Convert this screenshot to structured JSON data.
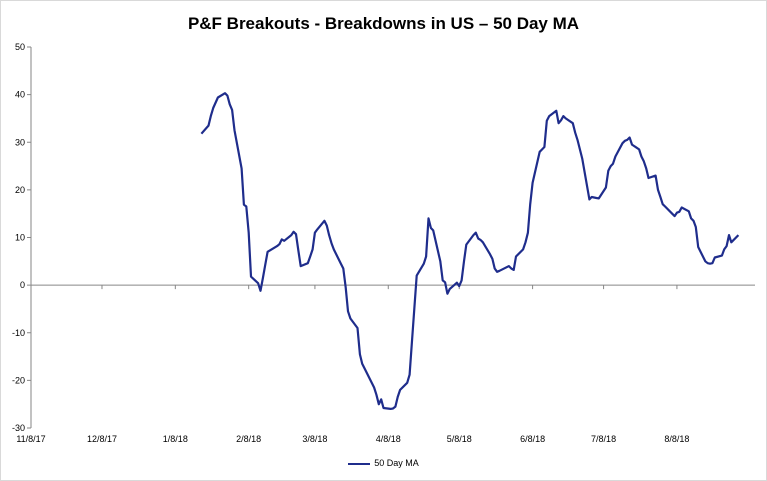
{
  "chart_data": {
    "type": "line",
    "title": "P&F Breakouts - Breakdowns in US – 50 Day MA",
    "xlabel": "",
    "ylabel": "",
    "ylim": [
      -30,
      50
    ],
    "yticks": [
      -30,
      -20,
      -10,
      0,
      10,
      20,
      30,
      40,
      50
    ],
    "xlim": [
      "2017-11-08",
      "2018-09-10"
    ],
    "xtick_labels": [
      "11/8/17",
      "12/8/17",
      "1/8/18",
      "2/8/18",
      "3/8/18",
      "4/8/18",
      "5/8/18",
      "6/8/18",
      "7/8/18",
      "8/8/18"
    ],
    "xtick_dates": [
      "2017-11-08",
      "2017-12-08",
      "2018-01-08",
      "2018-02-08",
      "2018-03-08",
      "2018-04-08",
      "2018-05-08",
      "2018-06-08",
      "2018-07-08",
      "2018-08-08"
    ],
    "grid": false,
    "legend_position": "bottom",
    "series": [
      {
        "name": "50 Day MA",
        "color": "#1f2d8c",
        "points": [
          [
            "2018-01-19",
            31.8
          ],
          [
            "2018-01-22",
            33.5
          ],
          [
            "2018-01-23",
            35.5
          ],
          [
            "2018-01-24",
            37.2
          ],
          [
            "2018-01-26",
            39.4
          ],
          [
            "2018-01-29",
            40.3
          ],
          [
            "2018-01-30",
            39.8
          ],
          [
            "2018-01-31",
            38.0
          ],
          [
            "2018-02-01",
            36.8
          ],
          [
            "2018-02-02",
            32.5
          ],
          [
            "2018-02-05",
            24.5
          ],
          [
            "2018-02-06",
            16.9
          ],
          [
            "2018-02-07",
            16.5
          ],
          [
            "2018-02-08",
            11.0
          ],
          [
            "2018-02-09",
            1.8
          ],
          [
            "2018-02-12",
            0.4
          ],
          [
            "2018-02-13",
            -1.2
          ],
          [
            "2018-02-14",
            1.5
          ],
          [
            "2018-02-15",
            4.2
          ],
          [
            "2018-02-16",
            7.0
          ],
          [
            "2018-02-20",
            8.2
          ],
          [
            "2018-02-21",
            8.6
          ],
          [
            "2018-02-22",
            9.6
          ],
          [
            "2018-02-23",
            9.3
          ],
          [
            "2018-02-26",
            10.5
          ],
          [
            "2018-02-27",
            11.2
          ],
          [
            "2018-02-28",
            10.7
          ],
          [
            "2018-03-01",
            7.2
          ],
          [
            "2018-03-02",
            4.0
          ],
          [
            "2018-03-05",
            4.6
          ],
          [
            "2018-03-06",
            6.0
          ],
          [
            "2018-03-07",
            7.5
          ],
          [
            "2018-03-08",
            11.0
          ],
          [
            "2018-03-09",
            11.7
          ],
          [
            "2018-03-12",
            13.5
          ],
          [
            "2018-03-13",
            12.5
          ],
          [
            "2018-03-14",
            10.5
          ],
          [
            "2018-03-15",
            8.8
          ],
          [
            "2018-03-16",
            7.5
          ],
          [
            "2018-03-19",
            4.5
          ],
          [
            "2018-03-20",
            3.5
          ],
          [
            "2018-03-21",
            -0.5
          ],
          [
            "2018-03-22",
            -5.5
          ],
          [
            "2018-03-23",
            -7.0
          ],
          [
            "2018-03-26",
            -9.0
          ],
          [
            "2018-03-27",
            -14.5
          ],
          [
            "2018-03-28",
            -16.5
          ],
          [
            "2018-03-29",
            -17.5
          ],
          [
            "2018-04-02",
            -21.5
          ],
          [
            "2018-04-03",
            -23.0
          ],
          [
            "2018-04-04",
            -25.0
          ],
          [
            "2018-04-05",
            -24.0
          ],
          [
            "2018-04-06",
            -25.8
          ],
          [
            "2018-04-09",
            -26.0
          ],
          [
            "2018-04-10",
            -25.9
          ],
          [
            "2018-04-11",
            -25.5
          ],
          [
            "2018-04-12",
            -23.5
          ],
          [
            "2018-04-13",
            -22.0
          ],
          [
            "2018-04-16",
            -20.5
          ],
          [
            "2018-04-17",
            -18.8
          ],
          [
            "2018-04-18",
            -12.0
          ],
          [
            "2018-04-19",
            -5.0
          ],
          [
            "2018-04-20",
            2.0
          ],
          [
            "2018-04-23",
            4.5
          ],
          [
            "2018-04-24",
            6.0
          ],
          [
            "2018-04-25",
            14.0
          ],
          [
            "2018-04-26",
            12.0
          ],
          [
            "2018-04-27",
            11.5
          ],
          [
            "2018-04-30",
            5.0
          ],
          [
            "2018-05-01",
            1.0
          ],
          [
            "2018-05-02",
            0.6
          ],
          [
            "2018-05-03",
            -1.8
          ],
          [
            "2018-05-04",
            -0.8
          ],
          [
            "2018-05-07",
            0.5
          ],
          [
            "2018-05-08",
            -0.2
          ],
          [
            "2018-05-09",
            1.0
          ],
          [
            "2018-05-10",
            5.0
          ],
          [
            "2018-05-11",
            8.5
          ],
          [
            "2018-05-14",
            10.5
          ],
          [
            "2018-05-15",
            11.0
          ],
          [
            "2018-05-16",
            9.8
          ],
          [
            "2018-05-17",
            9.5
          ],
          [
            "2018-05-18",
            9.0
          ],
          [
            "2018-05-21",
            6.5
          ],
          [
            "2018-05-22",
            5.5
          ],
          [
            "2018-05-23",
            3.5
          ],
          [
            "2018-05-24",
            2.8
          ],
          [
            "2018-05-25",
            3.0
          ],
          [
            "2018-05-29",
            4.0
          ],
          [
            "2018-05-30",
            3.5
          ],
          [
            "2018-05-31",
            3.2
          ],
          [
            "2018-06-01",
            6.0
          ],
          [
            "2018-06-04",
            7.5
          ],
          [
            "2018-06-05",
            9.0
          ],
          [
            "2018-06-06",
            11.0
          ],
          [
            "2018-06-07",
            17.0
          ],
          [
            "2018-06-08",
            21.5
          ],
          [
            "2018-06-11",
            28.0
          ],
          [
            "2018-06-12",
            28.5
          ],
          [
            "2018-06-13",
            29.0
          ],
          [
            "2018-06-14",
            34.5
          ],
          [
            "2018-06-15",
            35.5
          ],
          [
            "2018-06-18",
            36.6
          ],
          [
            "2018-06-19",
            34.0
          ],
          [
            "2018-06-20",
            34.6
          ],
          [
            "2018-06-21",
            35.5
          ],
          [
            "2018-06-22",
            35.0
          ],
          [
            "2018-06-25",
            34.0
          ],
          [
            "2018-06-26",
            32.0
          ],
          [
            "2018-06-27",
            30.5
          ],
          [
            "2018-06-28",
            28.5
          ],
          [
            "2018-06-29",
            26.5
          ],
          [
            "2018-07-02",
            18.0
          ],
          [
            "2018-07-03",
            18.5
          ],
          [
            "2018-07-05",
            18.3
          ],
          [
            "2018-07-06",
            18.2
          ],
          [
            "2018-07-09",
            20.5
          ],
          [
            "2018-07-10",
            24.0
          ],
          [
            "2018-07-11",
            25.0
          ],
          [
            "2018-07-12",
            25.5
          ],
          [
            "2018-07-13",
            27.0
          ],
          [
            "2018-07-16",
            29.8
          ],
          [
            "2018-07-17",
            30.3
          ],
          [
            "2018-07-18",
            30.5
          ],
          [
            "2018-07-19",
            31.0
          ],
          [
            "2018-07-20",
            29.5
          ],
          [
            "2018-07-23",
            28.5
          ],
          [
            "2018-07-24",
            27.0
          ],
          [
            "2018-07-25",
            26.0
          ],
          [
            "2018-07-26",
            24.5
          ],
          [
            "2018-07-27",
            22.5
          ],
          [
            "2018-07-30",
            23.0
          ],
          [
            "2018-07-31",
            20.0
          ],
          [
            "2018-08-01",
            18.5
          ],
          [
            "2018-08-02",
            17.0
          ],
          [
            "2018-08-03",
            16.5
          ],
          [
            "2018-08-06",
            15.0
          ],
          [
            "2018-08-07",
            14.5
          ],
          [
            "2018-08-08",
            15.2
          ],
          [
            "2018-08-09",
            15.4
          ],
          [
            "2018-08-10",
            16.3
          ],
          [
            "2018-08-13",
            15.5
          ],
          [
            "2018-08-14",
            14.0
          ],
          [
            "2018-08-15",
            13.5
          ],
          [
            "2018-08-16",
            12.2
          ],
          [
            "2018-08-17",
            8.0
          ],
          [
            "2018-08-20",
            5.0
          ],
          [
            "2018-08-21",
            4.6
          ],
          [
            "2018-08-22",
            4.5
          ],
          [
            "2018-08-23",
            4.6
          ],
          [
            "2018-08-24",
            5.8
          ],
          [
            "2018-08-27",
            6.2
          ],
          [
            "2018-08-28",
            7.5
          ],
          [
            "2018-08-29",
            8.2
          ],
          [
            "2018-08-30",
            10.5
          ],
          [
            "2018-08-31",
            9.0
          ],
          [
            "2018-09-03",
            10.5
          ]
        ]
      }
    ]
  }
}
